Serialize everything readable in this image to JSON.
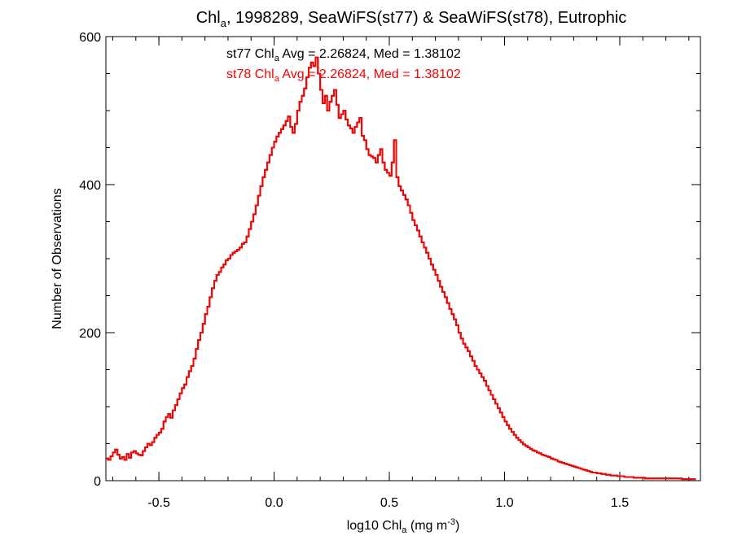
{
  "chart_data": {
    "type": "histogram-step",
    "title_parts": {
      "main": "Chl",
      "main_sub": "a",
      "rest": ", 1998289, SeaWiFS(st77) & SeaWiFS(st78), Eutrophic"
    },
    "xlabel_parts": {
      "main": "log10 Chl",
      "main_sub": "a",
      "rest": " (mg m",
      "sup": "-3",
      "end": ")"
    },
    "ylabel": "Number of Observations",
    "xlim": [
      -0.73,
      1.85
    ],
    "ylim": [
      0,
      600
    ],
    "x_ticks": [
      {
        "value": -0.5,
        "label": "-0.5"
      },
      {
        "value": 0.0,
        "label": "0.0"
      },
      {
        "value": 0.5,
        "label": "0.5"
      },
      {
        "value": 1.0,
        "label": "1.0"
      },
      {
        "value": 1.5,
        "label": "1.5"
      }
    ],
    "y_ticks": [
      {
        "value": 0,
        "label": "0"
      },
      {
        "value": 200,
        "label": "200"
      },
      {
        "value": 400,
        "label": "400"
      },
      {
        "value": 600,
        "label": "600"
      }
    ],
    "x_minor_step": 0.1,
    "y_minor_step": 50,
    "annotations": [
      {
        "series": "st77",
        "color": "#000000",
        "pre": "st77 Chl",
        "sub": "a",
        "post": " Avg = 2.26824, Med = 1.38102"
      },
      {
        "series": "st78",
        "color": "#ff0000",
        "pre": "st78 Chl",
        "sub": "a",
        "post": " Avg = 2.26824, Med = 1.38102"
      }
    ],
    "colors": {
      "st77": "#000000",
      "st78": "#ff0000"
    },
    "histogram": {
      "x_start": -0.73,
      "bin_width": 0.01,
      "counts": [
        30,
        28,
        33,
        38,
        42,
        35,
        30,
        32,
        28,
        36,
        31,
        38,
        40,
        37,
        35,
        34,
        40,
        45,
        50,
        48,
        52,
        58,
        62,
        65,
        70,
        80,
        86,
        90,
        85,
        95,
        102,
        110,
        118,
        125,
        130,
        140,
        148,
        155,
        165,
        178,
        190,
        200,
        212,
        225,
        235,
        248,
        260,
        270,
        278,
        282,
        288,
        292,
        298,
        300,
        305,
        308,
        310,
        312,
        315,
        320,
        322,
        330,
        340,
        350,
        360,
        372,
        385,
        398,
        410,
        420,
        430,
        440,
        450,
        458,
        465,
        470,
        475,
        480,
        486,
        492,
        478,
        470,
        482,
        500,
        512,
        520,
        530,
        545,
        558,
        565,
        560,
        572,
        550,
        528,
        510,
        520,
        500,
        512,
        520,
        528,
        508,
        490,
        495,
        500,
        488,
        480,
        476,
        470,
        478,
        484,
        490,
        466,
        460,
        448,
        440,
        438,
        436,
        430,
        440,
        448,
        430,
        420,
        416,
        412,
        430,
        460,
        410,
        398,
        392,
        386,
        380,
        372,
        362,
        352,
        345,
        338,
        330,
        322,
        315,
        308,
        300,
        292,
        285,
        278,
        270,
        262,
        255,
        248,
        240,
        232,
        225,
        218,
        210,
        200,
        192,
        185,
        180,
        175,
        168,
        162,
        155,
        150,
        145,
        140,
        135,
        128,
        122,
        116,
        110,
        104,
        98,
        92,
        86,
        80,
        75,
        70,
        66,
        62,
        58,
        55,
        52,
        49,
        47,
        45,
        43,
        41,
        40,
        38,
        37,
        35,
        34,
        33,
        32,
        30,
        29,
        28,
        26,
        25,
        24,
        23,
        22,
        21,
        20,
        19,
        18,
        17,
        16,
        15,
        14,
        13,
        12,
        11,
        11,
        10,
        10,
        9,
        9,
        8,
        8,
        7,
        7,
        7,
        6,
        6,
        6,
        5,
        5,
        5,
        5,
        4,
        4,
        4,
        4,
        4,
        3,
        3,
        3,
        3,
        3,
        3,
        3,
        3,
        3,
        3,
        3,
        3,
        3,
        3,
        3,
        3,
        2,
        2,
        2,
        2,
        2,
        2
      ]
    }
  }
}
